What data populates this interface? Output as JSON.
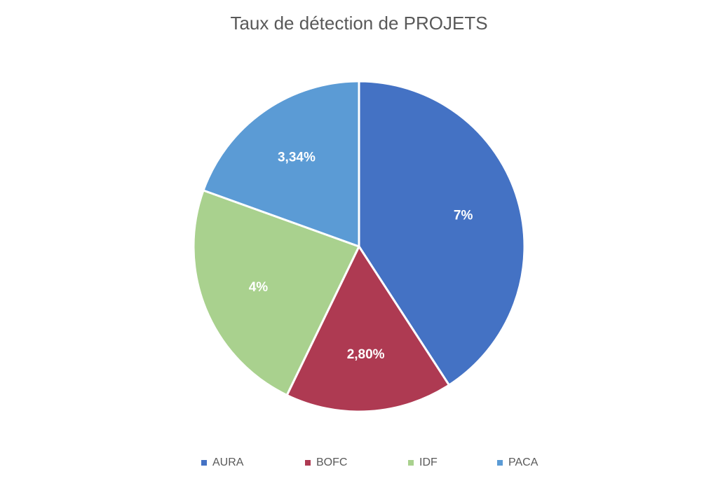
{
  "chart_data": {
    "type": "pie",
    "title": "Taux de détection de PROJETS",
    "categories": [
      "AURA",
      "BOFC",
      "IDF",
      "PACA"
    ],
    "values": [
      7,
      2.8,
      4,
      3.34
    ],
    "data_labels": [
      "7%",
      "2,80%",
      "4%",
      "3,34%"
    ],
    "colors": [
      "#4472C4",
      "#AE3A52",
      "#A9D18E",
      "#5B9BD5"
    ],
    "legend_position": "bottom"
  }
}
